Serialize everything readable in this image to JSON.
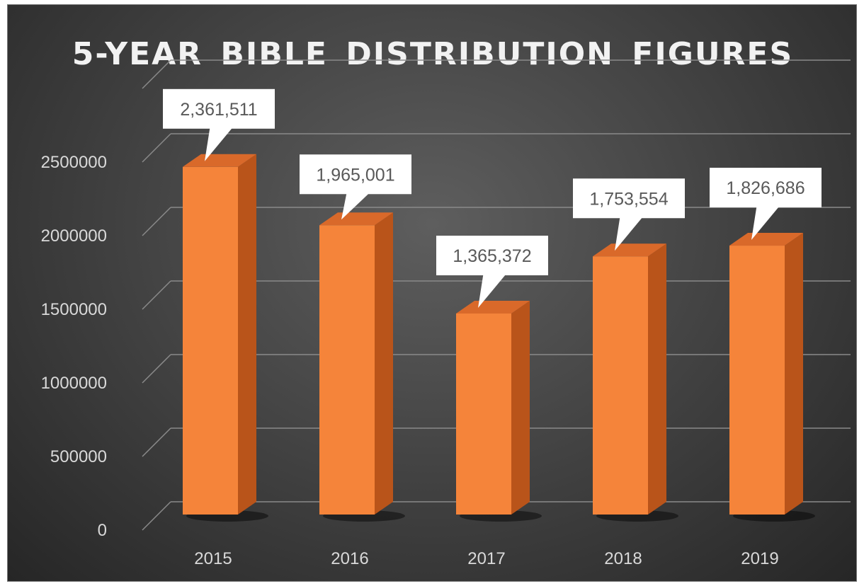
{
  "chart_data": {
    "type": "bar",
    "title": "5-YEAR BIBLE DISTRIBUTION FIGURES",
    "categories": [
      "2015",
      "2016",
      "2017",
      "2018",
      "2019"
    ],
    "values": [
      2361511,
      1965001,
      1365372,
      1753554,
      1826686
    ],
    "data_labels": [
      "2,361,511",
      "1,965,001",
      "1,365,372",
      "1,753,554",
      "1,826,686"
    ],
    "y_ticks": [
      "0",
      "500000",
      "1000000",
      "1500000",
      "2000000",
      "2500000"
    ],
    "ylim": [
      0,
      3000000
    ],
    "grid": true,
    "style": "3d-column",
    "colors": {
      "bar_front": "#f5843a",
      "bar_side": "#b9541a",
      "bar_top": "#d9692a",
      "background": "#3f3f3f",
      "text": "#d9d9d9"
    }
  }
}
